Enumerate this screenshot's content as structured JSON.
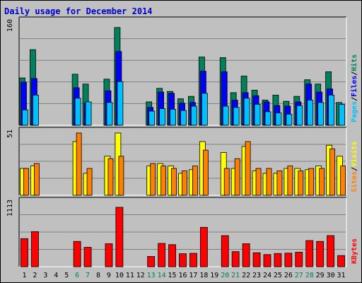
{
  "chart_title": "Daily usage for December 2014",
  "colors": {
    "hits": "#00805c",
    "files": "#0000ff",
    "pages": "#00c0ff",
    "visits": "#ffff00",
    "sites": "#ff8000",
    "kbytes": "#ff0000",
    "weekend_label": "#00805c",
    "weekday_label": "#000000"
  },
  "chart_data": [
    {
      "type": "bar",
      "panel": "hits-files-pages",
      "title": "",
      "ylabel_parts": [
        "Pages",
        "Files",
        "Hits"
      ],
      "ymax_label": "160",
      "ylim": [
        0,
        160
      ],
      "categories": [
        "1",
        "2",
        "3",
        "4",
        "5",
        "6",
        "7",
        "8",
        "9",
        "10",
        "11",
        "12",
        "13",
        "14",
        "15",
        "16",
        "17",
        "18",
        "19",
        "20",
        "21",
        "22",
        "23",
        "24",
        "25",
        "26",
        "27",
        "28",
        "29",
        "30",
        "31"
      ],
      "series": [
        {
          "name": "Hits",
          "values": [
            77,
            123,
            0,
            0,
            0,
            83,
            67,
            0,
            75,
            159,
            0,
            0,
            38,
            60,
            55,
            43,
            47,
            111,
            0,
            110,
            53,
            80,
            57,
            41,
            49,
            39,
            47,
            74,
            67,
            87,
            37
          ]
        },
        {
          "name": "Files",
          "values": [
            70,
            76,
            0,
            0,
            0,
            61,
            36,
            0,
            56,
            120,
            0,
            0,
            29,
            54,
            52,
            36,
            37,
            88,
            0,
            87,
            41,
            53,
            48,
            38,
            32,
            31,
            38,
            67,
            54,
            59,
            0
          ]
        },
        {
          "name": "Pages",
          "values": [
            25,
            49,
            0,
            0,
            0,
            44,
            38,
            0,
            37,
            71,
            0,
            0,
            23,
            27,
            26,
            24,
            31,
            52,
            0,
            31,
            29,
            44,
            34,
            22,
            20,
            18,
            32,
            41,
            37,
            49,
            34
          ]
        }
      ],
      "weekend_days": [
        6,
        7,
        13,
        14,
        20,
        21,
        27,
        28
      ]
    },
    {
      "type": "bar",
      "panel": "sites-visits",
      "ylabel_parts": [
        "Sites",
        "Visits"
      ],
      "ymax_label": "51",
      "ylim": [
        0,
        51
      ],
      "categories": [
        "1",
        "2",
        "3",
        "4",
        "5",
        "6",
        "7",
        "8",
        "9",
        "10",
        "11",
        "12",
        "13",
        "14",
        "15",
        "16",
        "17",
        "18",
        "19",
        "20",
        "21",
        "22",
        "23",
        "24",
        "25",
        "26",
        "27",
        "28",
        "29",
        "30",
        "31"
      ],
      "series": [
        {
          "name": "Visits",
          "values": [
            22,
            24,
            0,
            0,
            0,
            44,
            18,
            0,
            32,
            51,
            0,
            0,
            24,
            26,
            24,
            18,
            21,
            44,
            0,
            35,
            22,
            40,
            20,
            18,
            18,
            22,
            22,
            21,
            24,
            41,
            32
          ]
        },
        {
          "name": "Sites",
          "values": [
            22,
            26,
            0,
            0,
            0,
            51,
            22,
            0,
            30,
            32,
            0,
            0,
            26,
            24,
            22,
            20,
            24,
            37,
            0,
            22,
            30,
            44,
            22,
            22,
            20,
            24,
            20,
            22,
            22,
            38,
            24
          ]
        }
      ]
    },
    {
      "type": "bar",
      "panel": "kbytes",
      "ylabel_parts": [
        "KBytes"
      ],
      "ymax_label": "1113",
      "ylim": [
        0,
        1113
      ],
      "categories": [
        "1",
        "2",
        "3",
        "4",
        "5",
        "6",
        "7",
        "8",
        "9",
        "10",
        "11",
        "12",
        "13",
        "14",
        "15",
        "16",
        "17",
        "18",
        "19",
        "20",
        "21",
        "22",
        "23",
        "24",
        "25",
        "26",
        "27",
        "28",
        "29",
        "30",
        "31"
      ],
      "series": [
        {
          "name": "KBytes",
          "values": [
            527,
            657,
            0,
            0,
            0,
            474,
            364,
            0,
            431,
            1113,
            0,
            0,
            193,
            437,
            414,
            244,
            251,
            738,
            0,
            583,
            283,
            431,
            262,
            228,
            248,
            254,
            271,
            490,
            474,
            583,
            209
          ]
        }
      ]
    }
  ]
}
